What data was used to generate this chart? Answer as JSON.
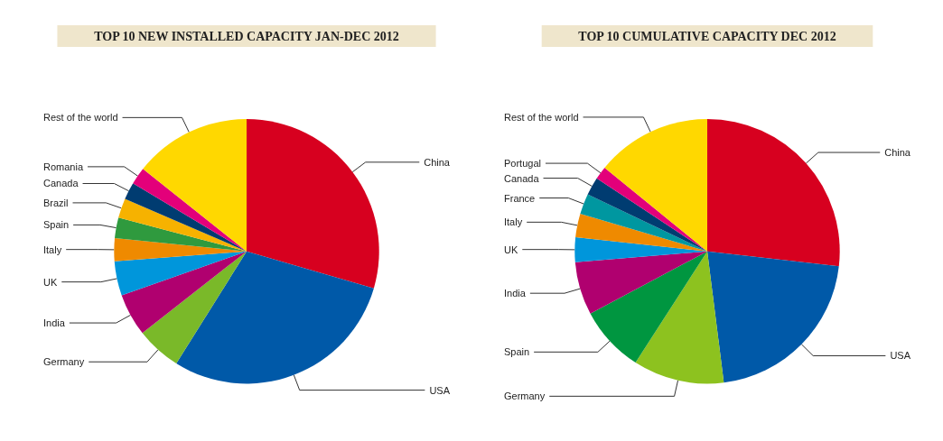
{
  "chart_data": [
    {
      "type": "pie",
      "title": "TOP 10 NEW INSTALLED CAPACITY JAN-DEC 2012",
      "categories": [
        "China",
        "USA",
        "Germany",
        "India",
        "UK",
        "Italy",
        "Spain",
        "Brazil",
        "Canada",
        "Romania",
        "Rest of the world"
      ],
      "values": [
        29.5,
        29.4,
        5.5,
        5.2,
        4.2,
        2.8,
        2.5,
        2.4,
        2.1,
        2.1,
        14.3
      ],
      "colors": [
        "#d7001f",
        "#0059a8",
        "#7ab929",
        "#b0006f",
        "#0096db",
        "#ef8a00",
        "#2f9a3e",
        "#f6b200",
        "#003c71",
        "#e3007a",
        "#ffd800"
      ],
      "legend": false
    },
    {
      "type": "pie",
      "title": "TOP 10 CUMULATIVE CAPACITY DEC 2012",
      "categories": [
        "China",
        "USA",
        "Germany",
        "Spain",
        "India",
        "UK",
        "Italy",
        "France",
        "Canada",
        "Portugal",
        "Rest of the world"
      ],
      "values": [
        26.8,
        21.2,
        11.1,
        8.1,
        6.5,
        3.0,
        2.9,
        2.5,
        2.2,
        1.6,
        14.1
      ],
      "colors": [
        "#d7001f",
        "#0059a8",
        "#8dc21f",
        "#009640",
        "#b0006f",
        "#0096db",
        "#ef8a00",
        "#0097a0",
        "#003c71",
        "#e3007a",
        "#ffd800"
      ],
      "legend": false
    }
  ]
}
